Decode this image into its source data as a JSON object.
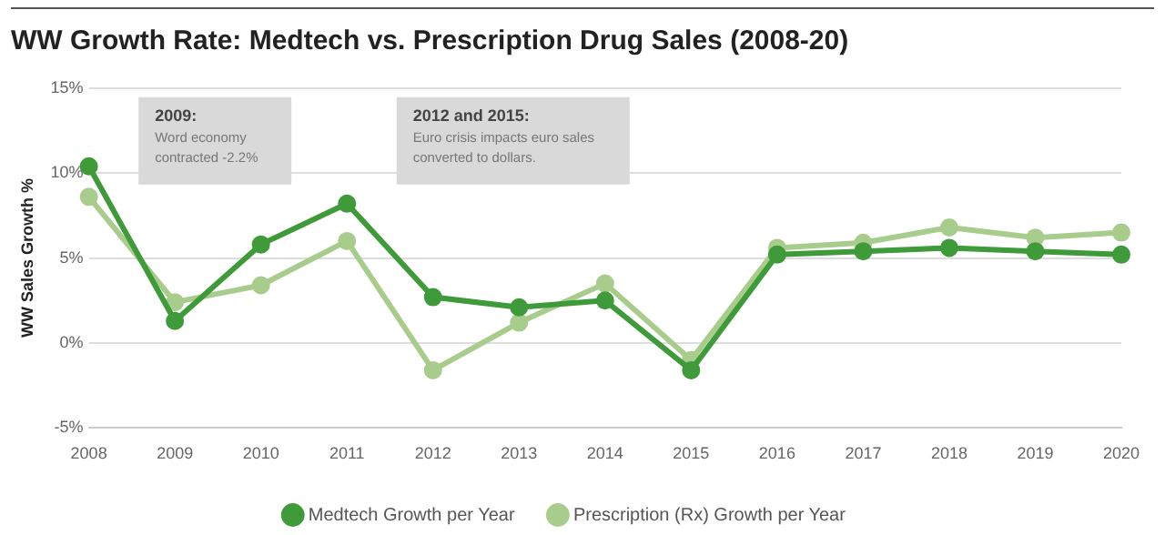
{
  "chart_data": {
    "type": "line",
    "title": "WW Growth Rate: Medtech vs. Prescription Drug Sales (2008-20)",
    "ylabel": "WW Sales Growth %",
    "categories": [
      "2008",
      "2009",
      "2010",
      "2011",
      "2012",
      "2013",
      "2014",
      "2015",
      "2016",
      "2017",
      "2018",
      "2019",
      "2020"
    ],
    "series": [
      {
        "name": "Medtech Growth per Year",
        "color": "#3f9a3a",
        "values": [
          10.4,
          1.3,
          5.8,
          8.2,
          2.7,
          2.1,
          2.5,
          -1.6,
          5.2,
          5.4,
          5.6,
          5.4,
          5.2
        ]
      },
      {
        "name": "Prescription (Rx) Growth per Year",
        "color": "#a8cc8c",
        "values": [
          8.6,
          2.4,
          3.4,
          6.0,
          -1.6,
          1.2,
          3.5,
          -1.0,
          5.6,
          5.9,
          6.8,
          6.2,
          6.5
        ]
      }
    ],
    "ylim": [
      -5,
      15
    ],
    "yticks": [
      {
        "value": -5,
        "label": "-5%"
      },
      {
        "value": 0,
        "label": "0%"
      },
      {
        "value": 5,
        "label": "5%"
      },
      {
        "value": 10,
        "label": "10%"
      },
      {
        "value": 15,
        "label": "15%"
      }
    ],
    "grid": "y",
    "legend": "bottom",
    "marker": "circle",
    "line_style": "solid",
    "annotations": [
      "2009:\nWord economy\ncontracted -2.2%",
      "2012 and 2015:\nEuro crisis impacts euro sales\nconverted to dollars."
    ]
  }
}
